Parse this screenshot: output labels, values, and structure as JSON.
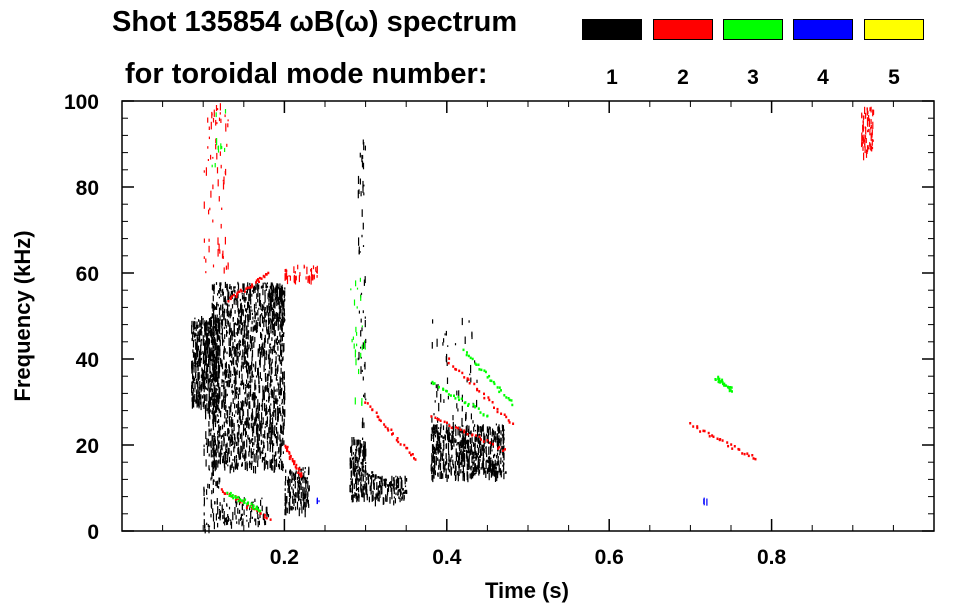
{
  "header": {
    "title_line1": "Shot 135854 ωB(ω) spectrum",
    "title_line2": "for toroidal mode number:"
  },
  "legend": [
    {
      "label": "1",
      "color": "#000000"
    },
    {
      "label": "2",
      "color": "#ff0000"
    },
    {
      "label": "3",
      "color": "#00ff00"
    },
    {
      "label": "4",
      "color": "#0000ff"
    },
    {
      "label": "5",
      "color": "#ffff00"
    }
  ],
  "chart_data": {
    "type": "heatmap",
    "title": "Shot 135854 ωB(ω) spectrum",
    "xlabel": "Time (s)",
    "ylabel": "Frequency (kHz)",
    "xlim": [
      0.0,
      1.0
    ],
    "ylim": [
      0,
      100
    ],
    "xticks": [
      0.2,
      0.4,
      0.6,
      0.8
    ],
    "yticks": [
      0,
      20,
      40,
      60,
      80,
      100
    ],
    "legend_title": "for toroidal mode number:",
    "legend_position": "top-right",
    "grid": false,
    "series": [
      {
        "name": "1",
        "color": "#000000",
        "regions": [
          {
            "t": [
              0.085,
              0.12
            ],
            "f": [
              30,
              50
            ],
            "density": 0.9
          },
          {
            "t": [
              0.11,
              0.2
            ],
            "f": [
              15,
              58
            ],
            "density": 0.55
          },
          {
            "t": [
              0.1,
              0.12
            ],
            "f": [
              0,
              30
            ],
            "density": 0.25
          },
          {
            "t": [
              0.18,
              0.2
            ],
            "f": [
              48,
              58
            ],
            "density": 0.8
          },
          {
            "t": [
              0.12,
              0.18
            ],
            "f": [
              2,
              8
            ],
            "density": 0.35
          },
          {
            "t": [
              0.2,
              0.23
            ],
            "f": [
              5,
              15
            ],
            "density": 0.7
          },
          {
            "t": [
              0.28,
              0.3
            ],
            "f": [
              8,
              22
            ],
            "density": 0.8
          },
          {
            "t": [
              0.3,
              0.35
            ],
            "f": [
              7,
              13
            ],
            "density": 0.5
          },
          {
            "t": [
              0.29,
              0.3
            ],
            "f": [
              25,
              92
            ],
            "density": 0.12
          },
          {
            "t": [
              0.38,
              0.47
            ],
            "f": [
              13,
              25
            ],
            "density": 0.75
          },
          {
            "t": [
              0.38,
              0.44
            ],
            "f": [
              25,
              50
            ],
            "density": 0.05
          }
        ],
        "tracks": [
          {
            "t": [
              0.38,
              0.47
            ],
            "f": [
              24,
              14
            ]
          },
          {
            "t": [
              0.3,
              0.35
            ],
            "f": [
              14,
              9
            ]
          }
        ]
      },
      {
        "name": "2",
        "color": "#ff0000",
        "regions": [
          {
            "t": [
              0.1,
              0.13
            ],
            "f": [
              60,
              100
            ],
            "density": 0.08
          },
          {
            "t": [
              0.2,
              0.24
            ],
            "f": [
              59,
              62
            ],
            "density": 0.5
          },
          {
            "t": [
              0.91,
              0.925
            ],
            "f": [
              88,
              99
            ],
            "density": 0.6
          }
        ],
        "tracks": [
          {
            "t": [
              0.13,
              0.18
            ],
            "f": [
              54,
              60
            ]
          },
          {
            "t": [
              0.12,
              0.18
            ],
            "f": [
              10,
              3
            ]
          },
          {
            "t": [
              0.3,
              0.36
            ],
            "f": [
              30,
              17
            ]
          },
          {
            "t": [
              0.4,
              0.48
            ],
            "f": [
              40,
              25
            ]
          },
          {
            "t": [
              0.38,
              0.47
            ],
            "f": [
              27,
              19
            ]
          },
          {
            "t": [
              0.7,
              0.78
            ],
            "f": [
              25,
              17
            ]
          },
          {
            "t": [
              0.2,
              0.22
            ],
            "f": [
              20,
              13
            ]
          }
        ]
      },
      {
        "name": "3",
        "color": "#00ff00",
        "regions": [
          {
            "t": [
              0.11,
              0.13
            ],
            "f": [
              85,
              100
            ],
            "density": 0.05
          },
          {
            "t": [
              0.28,
              0.3
            ],
            "f": [
              30,
              60
            ],
            "density": 0.06
          }
        ],
        "tracks": [
          {
            "t": [
              0.42,
              0.48
            ],
            "f": [
              42,
              30
            ]
          },
          {
            "t": [
              0.38,
              0.45
            ],
            "f": [
              35,
              27
            ]
          },
          {
            "t": [
              0.13,
              0.17
            ],
            "f": [
              9,
              5
            ]
          },
          {
            "t": [
              0.73,
              0.75
            ],
            "f": [
              36,
              33
            ]
          }
        ]
      },
      {
        "name": "4",
        "color": "#0000ff",
        "regions": [
          {
            "t": [
              0.715,
              0.72
            ],
            "f": [
              7,
              8
            ],
            "density": 1.0
          },
          {
            "t": [
              0.238,
              0.242
            ],
            "f": [
              7,
              8
            ],
            "density": 1.0
          }
        ],
        "tracks": []
      },
      {
        "name": "5",
        "color": "#ffff00",
        "regions": [],
        "tracks": []
      }
    ]
  }
}
